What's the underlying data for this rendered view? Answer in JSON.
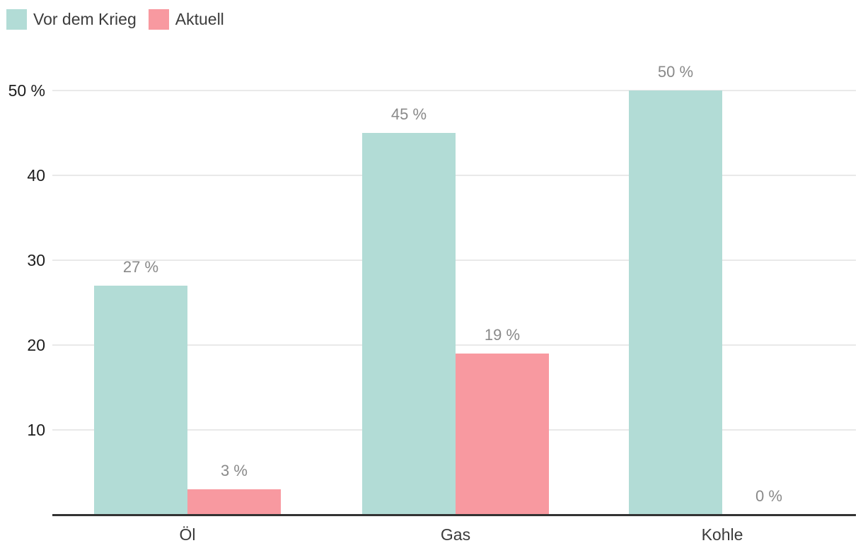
{
  "legend": {
    "position": "top-left"
  },
  "colors": {
    "background": "#ffffff",
    "series_vor_dem_krieg": "#b2dcd6",
    "series_aktuell": "#f899a0",
    "gridline": "#e9e9e9",
    "axis_line": "#333333",
    "tick_label": "#1d1d1d",
    "value_label": "#898989",
    "category_label": "#3b3b3b",
    "legend_text": "#3c3c3c"
  },
  "chart_data": {
    "type": "bar",
    "title": "",
    "xlabel": "",
    "ylabel": "",
    "categories": [
      "Öl",
      "Gas",
      "Kohle"
    ],
    "series": [
      {
        "name": "Vor dem Krieg",
        "color": "#b2dcd6",
        "values": [
          27,
          45,
          50
        ],
        "labels": [
          "27 %",
          "45 %",
          "50 %"
        ]
      },
      {
        "name": "Aktuell",
        "color": "#f899a0",
        "values": [
          3,
          19,
          0
        ],
        "labels": [
          "3 %",
          "19 %",
          "0 %"
        ]
      }
    ],
    "value_suffix": " %",
    "ylim": [
      0,
      50
    ],
    "yticks": [
      {
        "value": 50,
        "label": "50 %"
      },
      {
        "value": 40,
        "label": "40"
      },
      {
        "value": 30,
        "label": "30"
      },
      {
        "value": 20,
        "label": "20"
      },
      {
        "value": 10,
        "label": "10"
      }
    ],
    "grid": true,
    "legend_position": "top-left"
  }
}
